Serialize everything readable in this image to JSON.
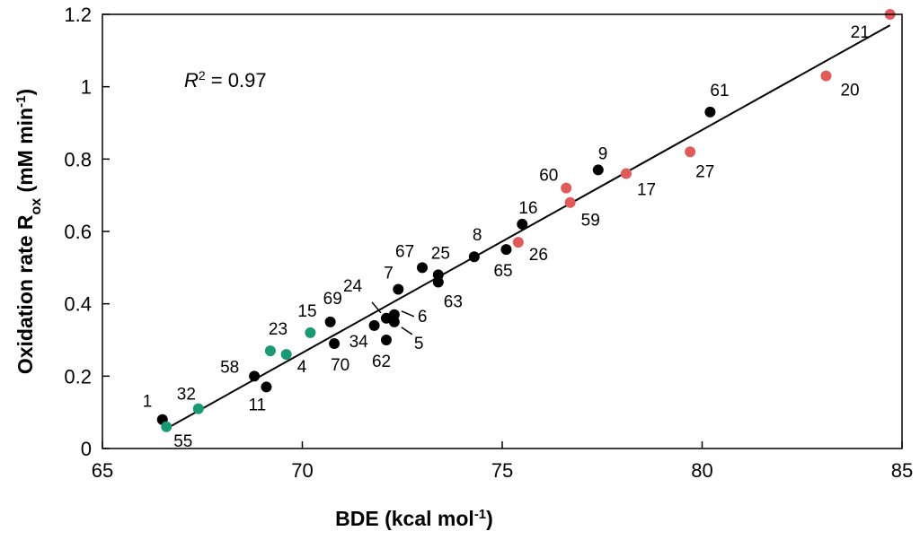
{
  "chart_data": {
    "type": "scatter",
    "title": "",
    "xlabel": {
      "main": "BDE (kcal mol",
      "sup": "-1",
      "tail": ")"
    },
    "ylabel": {
      "main": "Oxidation rate R",
      "sub": "ox",
      "mid": " (mM min",
      "sup": "-1",
      "tail": ")"
    },
    "xlim": [
      65,
      85
    ],
    "ylim": [
      0,
      1.2
    ],
    "x_ticks": [
      65,
      70,
      75,
      80,
      85
    ],
    "x_tick_labels": [
      "65",
      "70",
      "75",
      "80",
      "85"
    ],
    "y_ticks": [
      0,
      0.2,
      0.4,
      0.6,
      0.8,
      1.0,
      1.2
    ],
    "y_tick_labels": [
      "0",
      "0.2",
      "0.4",
      "0.6",
      "0.8",
      "1",
      "1.2"
    ],
    "grid": false,
    "annotation": {
      "r_symbol": "R",
      "sup": "2",
      "text": " = 0.97"
    },
    "fit_line": {
      "x": [
        66.6,
        84.7
      ],
      "y": [
        0.055,
        1.17
      ]
    },
    "colors": {
      "black": "#000000",
      "green": "#1a9a74",
      "red": "#e05a5a"
    },
    "points": [
      {
        "label": "1",
        "x": 66.5,
        "y": 0.08,
        "group": "black"
      },
      {
        "label": "55",
        "x": 66.6,
        "y": 0.06,
        "group": "green"
      },
      {
        "label": "32",
        "x": 67.4,
        "y": 0.11,
        "group": "green"
      },
      {
        "label": "58",
        "x": 68.8,
        "y": 0.2,
        "group": "black"
      },
      {
        "label": "11",
        "x": 69.1,
        "y": 0.17,
        "group": "black"
      },
      {
        "label": "23",
        "x": 69.2,
        "y": 0.27,
        "group": "green"
      },
      {
        "label": "4",
        "x": 69.6,
        "y": 0.26,
        "group": "green"
      },
      {
        "label": "15",
        "x": 70.2,
        "y": 0.32,
        "group": "green"
      },
      {
        "label": "69",
        "x": 70.7,
        "y": 0.35,
        "group": "black"
      },
      {
        "label": "70",
        "x": 70.8,
        "y": 0.29,
        "group": "black"
      },
      {
        "label": "34",
        "x": 71.8,
        "y": 0.34,
        "group": "black"
      },
      {
        "label": "24",
        "x": 72.1,
        "y": 0.36,
        "group": "black"
      },
      {
        "label": "62",
        "x": 72.1,
        "y": 0.3,
        "group": "black"
      },
      {
        "label": "6",
        "x": 72.3,
        "y": 0.37,
        "group": "black"
      },
      {
        "label": "5",
        "x": 72.3,
        "y": 0.35,
        "group": "black"
      },
      {
        "label": "7",
        "x": 72.4,
        "y": 0.44,
        "group": "black"
      },
      {
        "label": "67",
        "x": 73.0,
        "y": 0.5,
        "group": "black"
      },
      {
        "label": "25",
        "x": 73.4,
        "y": 0.48,
        "group": "black"
      },
      {
        "label": "63",
        "x": 73.4,
        "y": 0.46,
        "group": "black"
      },
      {
        "label": "8",
        "x": 74.3,
        "y": 0.53,
        "group": "black"
      },
      {
        "label": "65",
        "x": 75.1,
        "y": 0.55,
        "group": "black"
      },
      {
        "label": "26",
        "x": 75.4,
        "y": 0.57,
        "group": "red"
      },
      {
        "label": "16",
        "x": 75.5,
        "y": 0.62,
        "group": "black"
      },
      {
        "label": "60",
        "x": 76.6,
        "y": 0.72,
        "group": "red"
      },
      {
        "label": "59",
        "x": 76.7,
        "y": 0.68,
        "group": "red"
      },
      {
        "label": "9",
        "x": 77.4,
        "y": 0.77,
        "group": "black"
      },
      {
        "label": "17",
        "x": 78.1,
        "y": 0.76,
        "group": "red"
      },
      {
        "label": "27",
        "x": 79.7,
        "y": 0.82,
        "group": "red"
      },
      {
        "label": "61",
        "x": 80.2,
        "y": 0.93,
        "group": "black"
      },
      {
        "label": "20",
        "x": 83.1,
        "y": 1.03,
        "group": "red"
      },
      {
        "label": "21",
        "x": 84.7,
        "y": 1.2,
        "group": "red"
      }
    ]
  }
}
